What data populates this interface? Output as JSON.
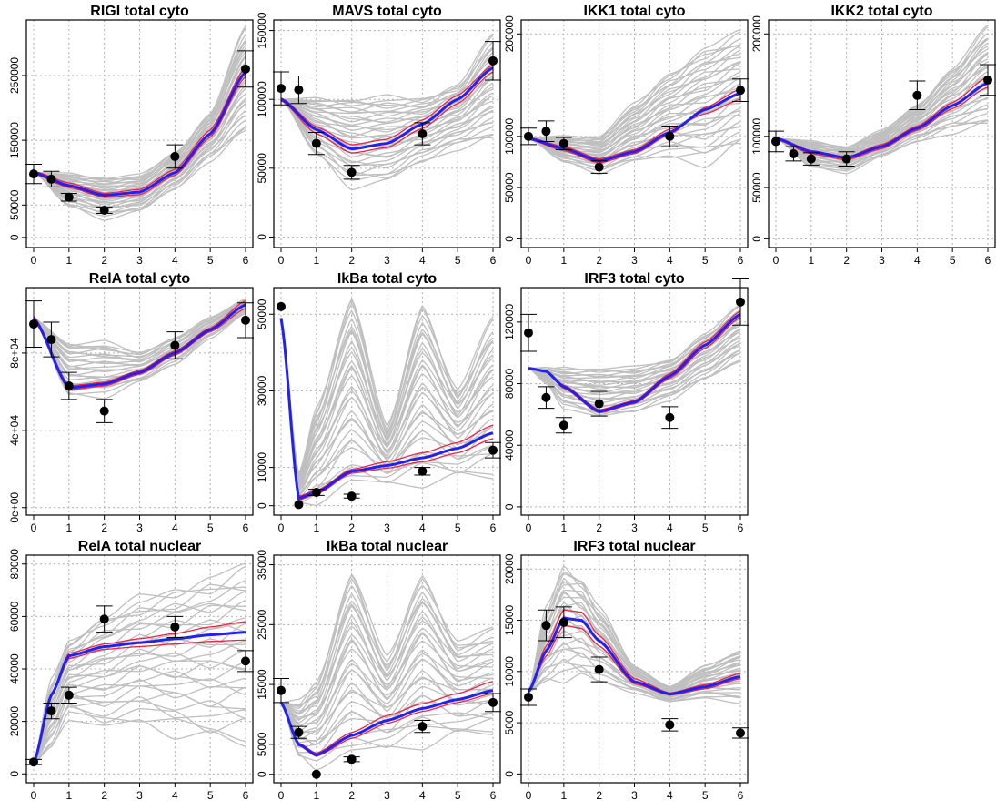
{
  "colors": {
    "ensemble": "#bfbfbf",
    "best_fit": "#2222ee",
    "ci_band": "#ee2244",
    "observed": "#000000",
    "grid": "#b0b0b0"
  },
  "x_ticks": [
    "0",
    "1",
    "2",
    "3",
    "4",
    "5",
    "6"
  ],
  "chart_data": [
    {
      "type": "line",
      "title": "RIGI total cyto",
      "xlim": [
        0,
        6
      ],
      "ylim": [
        -10000,
        330000
      ],
      "y_ticks": [
        0,
        50000,
        150000,
        250000
      ],
      "y_tick_labels": [
        "0",
        "50000",
        "150000",
        "250000"
      ],
      "grid": true,
      "points": [
        {
          "x": 0,
          "y": 98000,
          "err": 15000
        },
        {
          "x": 0.5,
          "y": 90000,
          "err": 12000
        },
        {
          "x": 1,
          "y": 62000,
          "err": 6000
        },
        {
          "x": 2,
          "y": 42000,
          "err": 5000
        },
        {
          "x": 4,
          "y": 125000,
          "err": 18000
        },
        {
          "x": 6,
          "y": 260000,
          "err": 28000
        }
      ],
      "fit": {
        "x": [
          0,
          1,
          2,
          3,
          4,
          5,
          6
        ],
        "y": [
          100000,
          80000,
          65000,
          70000,
          100000,
          160000,
          255000
        ]
      },
      "band_upper": [
        102000,
        84000,
        68000,
        74000,
        105000,
        166000,
        262000
      ],
      "band_lower": [
        98000,
        77000,
        62000,
        66000,
        96000,
        155000,
        248000
      ],
      "ensemble": {
        "initial": 100000,
        "low": [
          70000,
          48000,
          30000,
          40000,
          75000,
          120000,
          160000
        ],
        "high": [
          110000,
          98000,
          92000,
          95000,
          130000,
          190000,
          320000
        ],
        "lines": 35
      }
    },
    {
      "type": "line",
      "title": "MAVS total cyto",
      "xlim": [
        0,
        6
      ],
      "ylim": [
        -5000,
        155000
      ],
      "y_ticks": [
        0,
        50000,
        100000,
        150000
      ],
      "y_tick_labels": [
        "0",
        "50000",
        "100000",
        "150000"
      ],
      "grid": true,
      "points": [
        {
          "x": 0,
          "y": 108000,
          "err": 12000
        },
        {
          "x": 0.5,
          "y": 107000,
          "err": 10000
        },
        {
          "x": 1,
          "y": 68000,
          "err": 8000
        },
        {
          "x": 2,
          "y": 47000,
          "err": 5000
        },
        {
          "x": 4,
          "y": 75000,
          "err": 8000
        },
        {
          "x": 6,
          "y": 128000,
          "err": 14000
        }
      ],
      "fit": {
        "x": [
          0,
          1,
          2,
          3,
          4,
          5,
          6
        ],
        "y": [
          100000,
          78000,
          64000,
          68000,
          82000,
          100000,
          123000
        ]
      },
      "band_upper": [
        101000,
        80000,
        67000,
        71000,
        85000,
        103000,
        125000
      ],
      "band_lower": [
        99000,
        75000,
        61000,
        65000,
        79000,
        97000,
        120000
      ],
      "ensemble": {
        "initial": 100000,
        "low": [
          90000,
          60000,
          38000,
          40000,
          55000,
          65000,
          70000
        ],
        "high": [
          100000,
          100000,
          100000,
          100000,
          100000,
          110000,
          145000
        ],
        "lines": 35
      }
    },
    {
      "type": "line",
      "title": "IKK1 total cyto",
      "xlim": [
        0,
        6
      ],
      "ylim": [
        -5000,
        210000
      ],
      "y_ticks": [
        0,
        50000,
        100000,
        200000
      ],
      "y_tick_labels": [
        "0",
        "50000",
        "100000",
        "200000"
      ],
      "grid": true,
      "points": [
        {
          "x": 0,
          "y": 100000,
          "err": 8000
        },
        {
          "x": 0.5,
          "y": 105000,
          "err": 10000
        },
        {
          "x": 1,
          "y": 93000,
          "err": 6000
        },
        {
          "x": 2,
          "y": 70000,
          "err": 6000
        },
        {
          "x": 4,
          "y": 100000,
          "err": 10000
        },
        {
          "x": 6,
          "y": 145000,
          "err": 11000
        }
      ],
      "fit": {
        "x": [
          0,
          1,
          2,
          3,
          4,
          5,
          6
        ],
        "y": [
          98000,
          88000,
          76000,
          85000,
          104000,
          126000,
          142000
        ]
      },
      "band_upper": [
        99000,
        90000,
        78000,
        87000,
        107000,
        122000,
        136000
      ],
      "band_lower": [
        97000,
        86000,
        74000,
        83000,
        102000,
        128000,
        146000
      ],
      "ensemble": {
        "initial": 98000,
        "low": [
          95000,
          75000,
          65000,
          75000,
          80000,
          75000,
          90000
        ],
        "high": [
          100000,
          100000,
          100000,
          130000,
          160000,
          185000,
          200000
        ],
        "lines": 35
      }
    },
    {
      "type": "line",
      "title": "IKK2 total cyto",
      "xlim": [
        0,
        6
      ],
      "ylim": [
        -5000,
        210000
      ],
      "y_ticks": [
        0,
        50000,
        100000,
        200000
      ],
      "y_tick_labels": [
        "0",
        "50000",
        "100000",
        "200000"
      ],
      "grid": true,
      "points": [
        {
          "x": 0,
          "y": 95000,
          "err": 10000
        },
        {
          "x": 0.5,
          "y": 83000,
          "err": 7000
        },
        {
          "x": 1,
          "y": 78000,
          "err": 6000
        },
        {
          "x": 2,
          "y": 78000,
          "err": 7000
        },
        {
          "x": 4,
          "y": 140000,
          "err": 14000
        },
        {
          "x": 6,
          "y": 155000,
          "err": 15000
        }
      ],
      "fit": {
        "x": [
          0,
          1,
          2,
          3,
          4,
          5,
          6
        ],
        "y": [
          98000,
          85000,
          79000,
          90000,
          108000,
          130000,
          152000
        ]
      },
      "band_upper": [
        99000,
        86000,
        80000,
        92000,
        110000,
        133000,
        158000
      ],
      "band_lower": [
        97000,
        83000,
        77000,
        88000,
        106000,
        127000,
        148000
      ],
      "ensemble": {
        "initial": 98000,
        "low": [
          90000,
          70000,
          65000,
          80000,
          95000,
          105000,
          110000
        ],
        "high": [
          100000,
          95000,
          90000,
          105000,
          130000,
          165000,
          205000
        ],
        "lines": 35
      }
    },
    {
      "type": "line",
      "title": "RelA total cyto",
      "xlim": [
        0,
        6
      ],
      "ylim": [
        -2000,
        112000
      ],
      "y_ticks": [
        0,
        40000,
        80000
      ],
      "y_tick_labels": [
        "0e+00",
        "4e+04",
        "8e+04"
      ],
      "grid": true,
      "points": [
        {
          "x": 0,
          "y": 95000,
          "err": 12000
        },
        {
          "x": 0.5,
          "y": 87000,
          "err": 9000
        },
        {
          "x": 1,
          "y": 63000,
          "err": 7000
        },
        {
          "x": 2,
          "y": 50000,
          "err": 6000
        },
        {
          "x": 4,
          "y": 84000,
          "err": 7000
        },
        {
          "x": 6,
          "y": 97000,
          "err": 9000
        }
      ],
      "fit": {
        "x": [
          0,
          1,
          2,
          3,
          4,
          5,
          6
        ],
        "y": [
          98000,
          62000,
          64000,
          70000,
          80000,
          92000,
          105000
        ]
      },
      "band_upper": [
        99000,
        63000,
        65000,
        71000,
        81000,
        93000,
        107000
      ],
      "band_lower": [
        97000,
        61000,
        63000,
        69000,
        79000,
        91000,
        103000
      ],
      "ensemble": {
        "initial": 98000,
        "low": [
          95000,
          58000,
          58000,
          65000,
          74000,
          88000,
          100000
        ],
        "high": [
          100000,
          85000,
          85000,
          80000,
          88000,
          98000,
          108000
        ],
        "lines": 25
      }
    },
    {
      "type": "line",
      "title": "IkBa total cyto",
      "xlim": [
        0,
        6
      ],
      "ylim": [
        -1500,
        56000
      ],
      "y_ticks": [
        0,
        10000,
        30000,
        50000
      ],
      "y_tick_labels": [
        "0",
        "10000",
        "30000",
        "50000"
      ],
      "grid": true,
      "points": [
        {
          "x": 0,
          "y": 52000,
          "err": 0
        },
        {
          "x": 0.5,
          "y": 300,
          "err": 0
        },
        {
          "x": 1,
          "y": 3500,
          "err": 800
        },
        {
          "x": 2,
          "y": 2500,
          "err": 500
        },
        {
          "x": 4,
          "y": 9000,
          "err": 1000
        },
        {
          "x": 6,
          "y": 14500,
          "err": 2000
        }
      ],
      "fit": {
        "x": [
          0,
          0.5,
          1,
          2,
          3,
          4,
          5,
          6
        ],
        "y": [
          49000,
          2000,
          3500,
          9000,
          10500,
          12500,
          15000,
          19000
        ]
      },
      "band_upper": [
        49000,
        2500,
        4000,
        9500,
        11500,
        13800,
        16500,
        21000
      ],
      "band_lower": [
        49000,
        1500,
        3000,
        8500,
        9800,
        11500,
        13800,
        17500
      ],
      "ensemble": {
        "initial": 49000,
        "low": [
          49000,
          500,
          1500,
          5000,
          6000,
          7000,
          7500,
          8000
        ],
        "high": [
          49000,
          8000,
          25000,
          55000,
          20000,
          52000,
          30000,
          48000
        ],
        "lines": 30
      }
    },
    {
      "type": "line",
      "title": "IRF3 total cyto",
      "xlim": [
        0,
        6
      ],
      "ylim": [
        -3000,
        140000
      ],
      "y_ticks": [
        0,
        40000,
        80000,
        120000
      ],
      "y_tick_labels": [
        "0",
        "40000",
        "80000",
        "120000"
      ],
      "grid": true,
      "points": [
        {
          "x": 0,
          "y": 113000,
          "err": 12000
        },
        {
          "x": 0.5,
          "y": 71000,
          "err": 7000
        },
        {
          "x": 1,
          "y": 53000,
          "err": 5000
        },
        {
          "x": 2,
          "y": 67000,
          "err": 8000
        },
        {
          "x": 4,
          "y": 58000,
          "err": 7000
        },
        {
          "x": 6,
          "y": 133000,
          "err": 15000
        }
      ],
      "fit": {
        "x": [
          0,
          0.5,
          1,
          2,
          3,
          4,
          5,
          6
        ],
        "y": [
          90000,
          88000,
          78000,
          62000,
          68000,
          85000,
          105000,
          125000
        ]
      },
      "band_upper": [
        90000,
        88500,
        79000,
        63000,
        69000,
        86500,
        107000,
        127000
      ],
      "band_lower": [
        90000,
        87500,
        77000,
        61000,
        67000,
        83500,
        103000,
        123000
      ],
      "ensemble": {
        "initial": 90000,
        "low": [
          90000,
          80000,
          65000,
          58000,
          62000,
          70000,
          82000,
          95000
        ],
        "high": [
          90000,
          90000,
          90000,
          90000,
          90000,
          95000,
          112000,
          130000
        ],
        "lines": 30
      }
    },
    {
      "type": "line",
      "title": "RelA total nuclear",
      "xlim": [
        0,
        6
      ],
      "ylim": [
        -2000,
        82000
      ],
      "y_ticks": [
        0,
        20000,
        40000,
        60000,
        80000
      ],
      "y_tick_labels": [
        "0",
        "20000",
        "40000",
        "60000",
        "80000"
      ],
      "grid": true,
      "points": [
        {
          "x": 0,
          "y": 4500,
          "err": 1000
        },
        {
          "x": 0.5,
          "y": 24000,
          "err": 3000
        },
        {
          "x": 1,
          "y": 30000,
          "err": 3000
        },
        {
          "x": 2,
          "y": 59000,
          "err": 5000
        },
        {
          "x": 4,
          "y": 56000,
          "err": 4000
        },
        {
          "x": 6,
          "y": 43000,
          "err": 4000
        }
      ],
      "fit": {
        "x": [
          0,
          0.5,
          1,
          2,
          3,
          4,
          5,
          6
        ],
        "y": [
          4000,
          30000,
          45000,
          48500,
          50000,
          51500,
          53000,
          54000
        ]
      },
      "band_upper": [
        4000,
        30500,
        46000,
        49500,
        51500,
        53500,
        56000,
        58000
      ],
      "band_lower": [
        4000,
        29500,
        44000,
        47500,
        48500,
        49500,
        50500,
        51000
      ],
      "ensemble": {
        "initial": 4000,
        "low": [
          4000,
          10000,
          22000,
          17000,
          20000,
          16000,
          13000,
          12000
        ],
        "high": [
          4000,
          35000,
          50000,
          60000,
          66000,
          70000,
          74000,
          78000
        ],
        "lines": 30
      }
    },
    {
      "type": "line",
      "title": "IkBa total nuclear",
      "xlim": [
        0,
        6
      ],
      "ylim": [
        -800,
        36000
      ],
      "y_ticks": [
        0,
        5000,
        15000,
        25000,
        35000
      ],
      "y_tick_labels": [
        "0",
        "5000",
        "15000",
        "25000",
        "35000"
      ],
      "grid": true,
      "points": [
        {
          "x": 0,
          "y": 14000,
          "err": 2000
        },
        {
          "x": 0.5,
          "y": 7000,
          "err": 1000
        },
        {
          "x": 1,
          "y": 0,
          "err": 0
        },
        {
          "x": 2,
          "y": 2500,
          "err": 400
        },
        {
          "x": 4,
          "y": 8000,
          "err": 1000
        },
        {
          "x": 6,
          "y": 12000,
          "err": 1500
        }
      ],
      "fit": {
        "x": [
          0,
          0.5,
          1,
          2,
          3,
          4,
          5,
          6
        ],
        "y": [
          12000,
          5000,
          3200,
          6500,
          9000,
          11000,
          12500,
          14000
        ]
      },
      "band_upper": [
        12000,
        5200,
        3500,
        7000,
        9800,
        11800,
        13500,
        15500
      ],
      "band_lower": [
        12000,
        4800,
        3000,
        6000,
        8500,
        10500,
        12000,
        13500
      ],
      "ensemble": {
        "initial": 12000,
        "low": [
          12000,
          3000,
          1500,
          3000,
          4500,
          5500,
          6500,
          7000
        ],
        "high": [
          12000,
          12000,
          15000,
          34000,
          19000,
          33000,
          22000,
          24000
        ],
        "lines": 30
      }
    },
    {
      "type": "line",
      "title": "IRF3 total nuclear",
      "xlim": [
        0,
        6
      ],
      "ylim": [
        -500,
        21000
      ],
      "y_ticks": [
        0,
        5000,
        10000,
        15000,
        20000
      ],
      "y_tick_labels": [
        "0",
        "5000",
        "10000",
        "15000",
        "20000"
      ],
      "grid": true,
      "points": [
        {
          "x": 0,
          "y": 7500,
          "err": 800
        },
        {
          "x": 0.5,
          "y": 14500,
          "err": 1500
        },
        {
          "x": 1,
          "y": 14800,
          "err": 1500
        },
        {
          "x": 2,
          "y": 10200,
          "err": 1200
        },
        {
          "x": 4,
          "y": 4800,
          "err": 600
        },
        {
          "x": 6,
          "y": 4000,
          "err": 500
        }
      ],
      "fit": {
        "x": [
          0,
          0.5,
          1,
          1.5,
          2,
          3,
          4,
          5,
          6
        ],
        "y": [
          8000,
          12000,
          15200,
          15000,
          13000,
          9000,
          7800,
          8500,
          9500
        ]
      },
      "band_upper": [
        8000,
        12500,
        16000,
        15800,
        13500,
        9300,
        7900,
        8700,
        9800
      ],
      "band_lower": [
        8000,
        11500,
        14500,
        14200,
        12500,
        8800,
        7700,
        8300,
        9300
      ],
      "ensemble": {
        "initial": 8000,
        "low": [
          8000,
          9000,
          9500,
          9500,
          9000,
          8000,
          7000,
          7500,
          7000
        ],
        "high": [
          8000,
          16000,
          20000,
          19000,
          16000,
          10500,
          8500,
          10500,
          12000
        ],
        "lines": 30
      }
    }
  ]
}
